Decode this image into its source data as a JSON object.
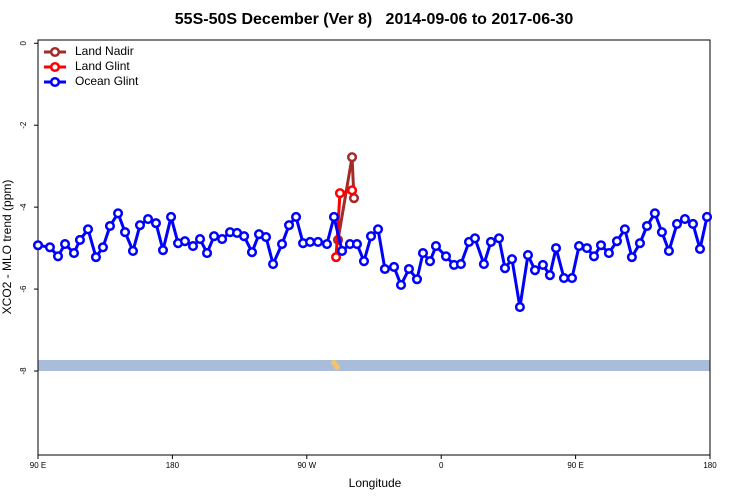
{
  "chart_data": {
    "type": "line",
    "title": "55S-50S December (Ver 8)   2014-09-06 to 2017-06-30",
    "xlabel": "Longitude",
    "ylabel": "XCO2 - MLO trend (ppm)",
    "xlim": [
      90,
      540
    ],
    "ylim": [
      -10.05,
      0.08
    ],
    "xticks": [
      {
        "value": 90,
        "label": "90 E"
      },
      180,
      {
        "value": 270,
        "label": "90 W"
      },
      {
        "value": 360,
        "label": "0"
      },
      {
        "value": 450,
        "label": "90 E"
      },
      {
        "value": 540,
        "label": "180"
      }
    ],
    "yticks": [
      0,
      -2,
      -4,
      -6,
      -8
    ],
    "legend": "top-left",
    "series": [
      {
        "name": "Land Nadir",
        "color": "#a52a2a",
        "x": [
          290.9,
          300.3,
          301.6
        ],
        "values": [
          -4.8,
          -2.78,
          -3.78
        ]
      },
      {
        "name": "Land Glint",
        "color": "#ff0000",
        "x": [
          289.6,
          292.2,
          300.3
        ],
        "values": [
          -5.22,
          -3.66,
          -3.59
        ]
      },
      {
        "name": "Ocean Glint",
        "color": "#0000ff",
        "x": [
          90,
          98,
          103.4,
          108.1,
          114.1,
          118.1,
          123.5,
          128.8,
          133.5,
          138.2,
          143.6,
          148.3,
          153.6,
          158.3,
          163.7,
          169,
          173.7,
          179.1,
          183.8,
          188.4,
          193.8,
          198.5,
          203.2,
          207.9,
          213.3,
          218.6,
          223.3,
          228,
          233.3,
          238,
          242.7,
          247.4,
          253.4,
          258.1,
          262.8,
          267.5,
          272.2,
          277.5,
          283.5,
          288.2,
          293.6,
          298.9,
          303.6,
          308.3,
          313,
          317.7,
          322.3,
          328.4,
          333.1,
          338.4,
          343.8,
          347.8,
          352.5,
          356.5,
          363.2,
          368.6,
          373.2,
          378.6,
          382.6,
          388.6,
          393.3,
          398.7,
          402.7,
          407.4,
          412.7,
          418.1,
          422.8,
          428.1,
          432.8,
          436.9,
          442.2,
          447.6,
          452.3,
          457.6,
          462.3,
          467,
          472.3,
          477.7,
          483,
          487.7,
          493.1,
          497.8,
          503.1,
          507.8,
          512.5,
          517.9,
          523.2,
          528.6,
          533.3,
          538
        ],
        "values": [
          -4.93,
          -4.98,
          -5.2,
          -4.9,
          -5.12,
          -4.8,
          -4.54,
          -5.22,
          -4.98,
          -4.46,
          -4.15,
          -4.61,
          -5.07,
          -4.44,
          -4.29,
          -4.39,
          -5.05,
          -4.24,
          -4.88,
          -4.83,
          -4.95,
          -4.78,
          -5.12,
          -4.71,
          -4.78,
          -4.61,
          -4.63,
          -4.71,
          -5.1,
          -4.66,
          -4.73,
          -5.39,
          -4.9,
          -4.44,
          -4.24,
          -4.88,
          -4.85,
          -4.85,
          -4.9,
          -4.24,
          -5.07,
          -4.9,
          -4.9,
          -5.32,
          -4.71,
          -4.54,
          -5.51,
          -5.46,
          -5.9,
          -5.51,
          -5.76,
          -5.12,
          -5.32,
          -4.95,
          -5.2,
          -5.41,
          -5.39,
          -4.85,
          -4.76,
          -5.39,
          -4.85,
          -4.76,
          -5.49,
          -5.27,
          -6.44,
          -5.17,
          -5.54,
          -5.41,
          -5.66,
          -5,
          -5.73,
          -5.73,
          -4.95,
          -5,
          -5.2,
          -4.93,
          -5.12,
          -4.83,
          -4.54,
          -5.22,
          -4.88,
          -4.46,
          -4.15,
          -4.61,
          -5.07,
          -4.41,
          -4.29,
          -4.41,
          -5.02,
          -4.24
        ]
      }
    ]
  }
}
